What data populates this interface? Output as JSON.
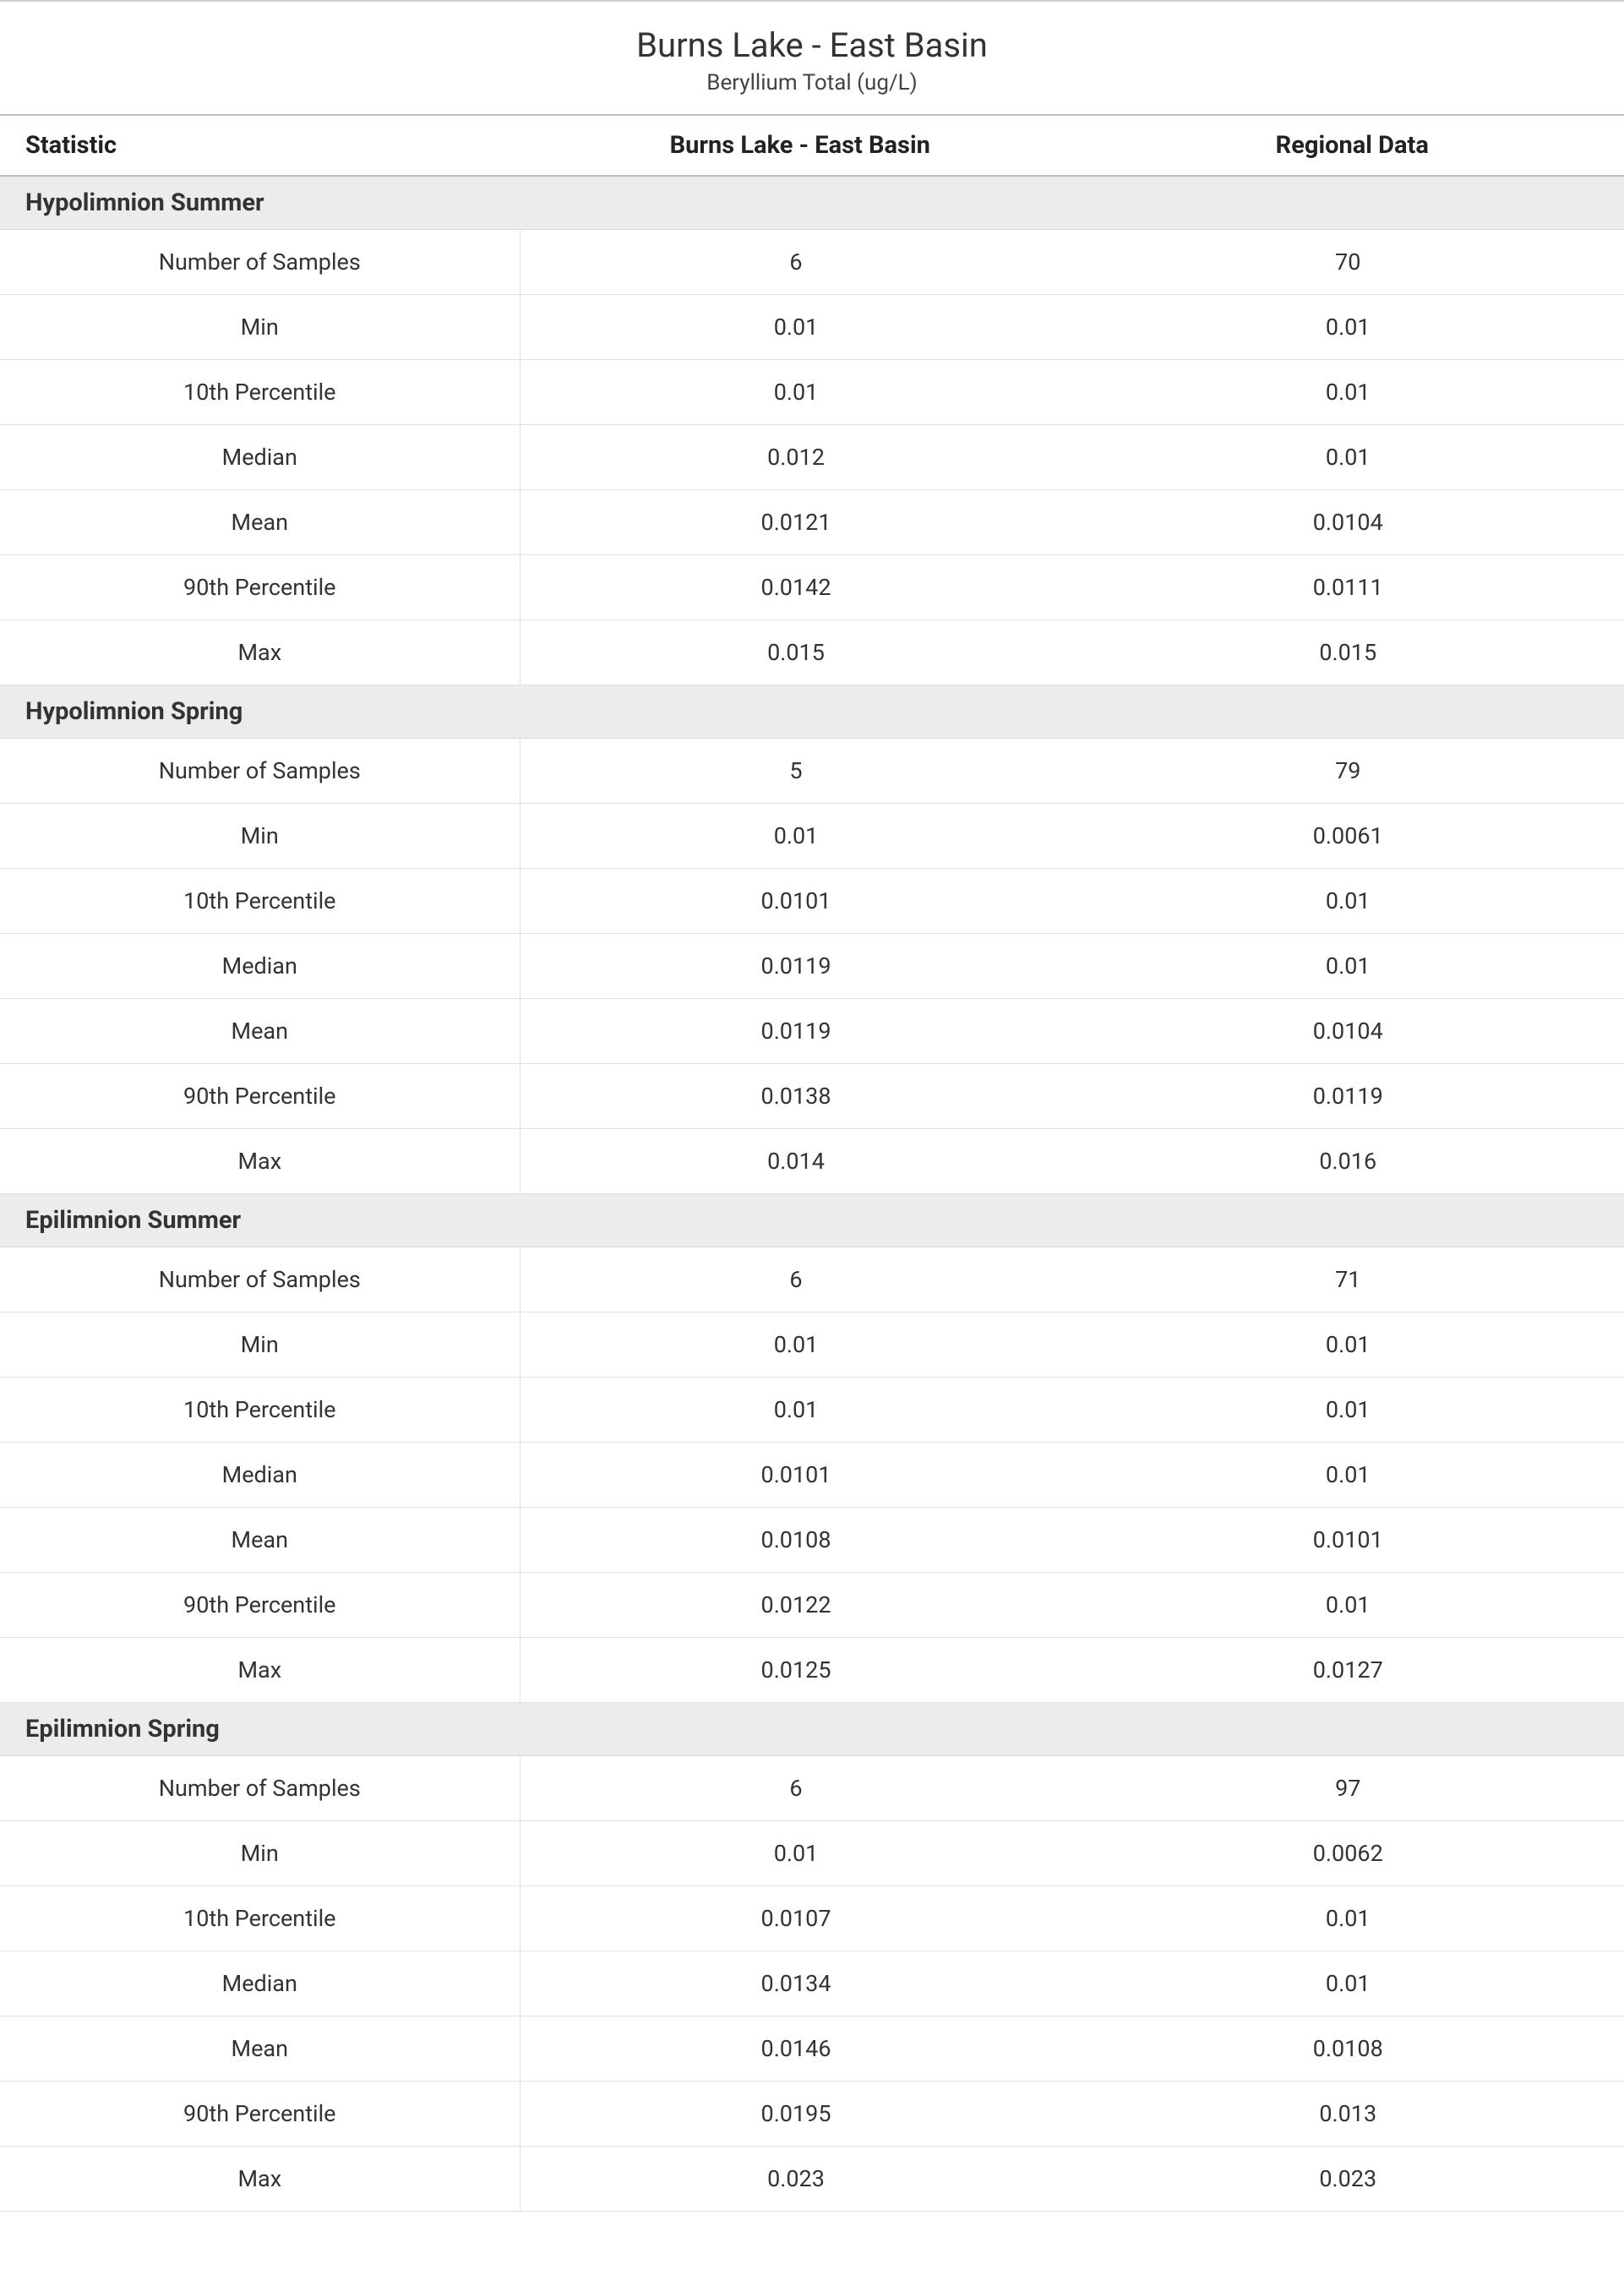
{
  "title": "Burns Lake - East Basin",
  "subtitle": "Beryllium Total (ug/L)",
  "columns": {
    "statistic": "Statistic",
    "site": "Burns Lake - East Basin",
    "regional": "Regional Data"
  },
  "styling": {
    "background_color": "#ffffff",
    "section_header_bg": "#ececec",
    "border_color": "#e2e2e2",
    "header_border_color": "#bdbdbd",
    "title_fontsize": 40,
    "subtitle_fontsize": 26,
    "header_fontsize": 29,
    "body_fontsize": 27,
    "text_color": "#333333",
    "font_family": "Segoe UI"
  },
  "sections": [
    {
      "name": "Hypolimnion Summer",
      "rows": [
        {
          "stat": "Number of Samples",
          "site": "6",
          "regional": "70"
        },
        {
          "stat": "Min",
          "site": "0.01",
          "regional": "0.01"
        },
        {
          "stat": "10th Percentile",
          "site": "0.01",
          "regional": "0.01"
        },
        {
          "stat": "Median",
          "site": "0.012",
          "regional": "0.01"
        },
        {
          "stat": "Mean",
          "site": "0.0121",
          "regional": "0.0104"
        },
        {
          "stat": "90th Percentile",
          "site": "0.0142",
          "regional": "0.0111"
        },
        {
          "stat": "Max",
          "site": "0.015",
          "regional": "0.015"
        }
      ]
    },
    {
      "name": "Hypolimnion Spring",
      "rows": [
        {
          "stat": "Number of Samples",
          "site": "5",
          "regional": "79"
        },
        {
          "stat": "Min",
          "site": "0.01",
          "regional": "0.0061"
        },
        {
          "stat": "10th Percentile",
          "site": "0.0101",
          "regional": "0.01"
        },
        {
          "stat": "Median",
          "site": "0.0119",
          "regional": "0.01"
        },
        {
          "stat": "Mean",
          "site": "0.0119",
          "regional": "0.0104"
        },
        {
          "stat": "90th Percentile",
          "site": "0.0138",
          "regional": "0.0119"
        },
        {
          "stat": "Max",
          "site": "0.014",
          "regional": "0.016"
        }
      ]
    },
    {
      "name": "Epilimnion Summer",
      "rows": [
        {
          "stat": "Number of Samples",
          "site": "6",
          "regional": "71"
        },
        {
          "stat": "Min",
          "site": "0.01",
          "regional": "0.01"
        },
        {
          "stat": "10th Percentile",
          "site": "0.01",
          "regional": "0.01"
        },
        {
          "stat": "Median",
          "site": "0.0101",
          "regional": "0.01"
        },
        {
          "stat": "Mean",
          "site": "0.0108",
          "regional": "0.0101"
        },
        {
          "stat": "90th Percentile",
          "site": "0.0122",
          "regional": "0.01"
        },
        {
          "stat": "Max",
          "site": "0.0125",
          "regional": "0.0127"
        }
      ]
    },
    {
      "name": "Epilimnion Spring",
      "rows": [
        {
          "stat": "Number of Samples",
          "site": "6",
          "regional": "97"
        },
        {
          "stat": "Min",
          "site": "0.01",
          "regional": "0.0062"
        },
        {
          "stat": "10th Percentile",
          "site": "0.0107",
          "regional": "0.01"
        },
        {
          "stat": "Median",
          "site": "0.0134",
          "regional": "0.01"
        },
        {
          "stat": "Mean",
          "site": "0.0146",
          "regional": "0.0108"
        },
        {
          "stat": "90th Percentile",
          "site": "0.0195",
          "regional": "0.013"
        },
        {
          "stat": "Max",
          "site": "0.023",
          "regional": "0.023"
        }
      ]
    }
  ]
}
